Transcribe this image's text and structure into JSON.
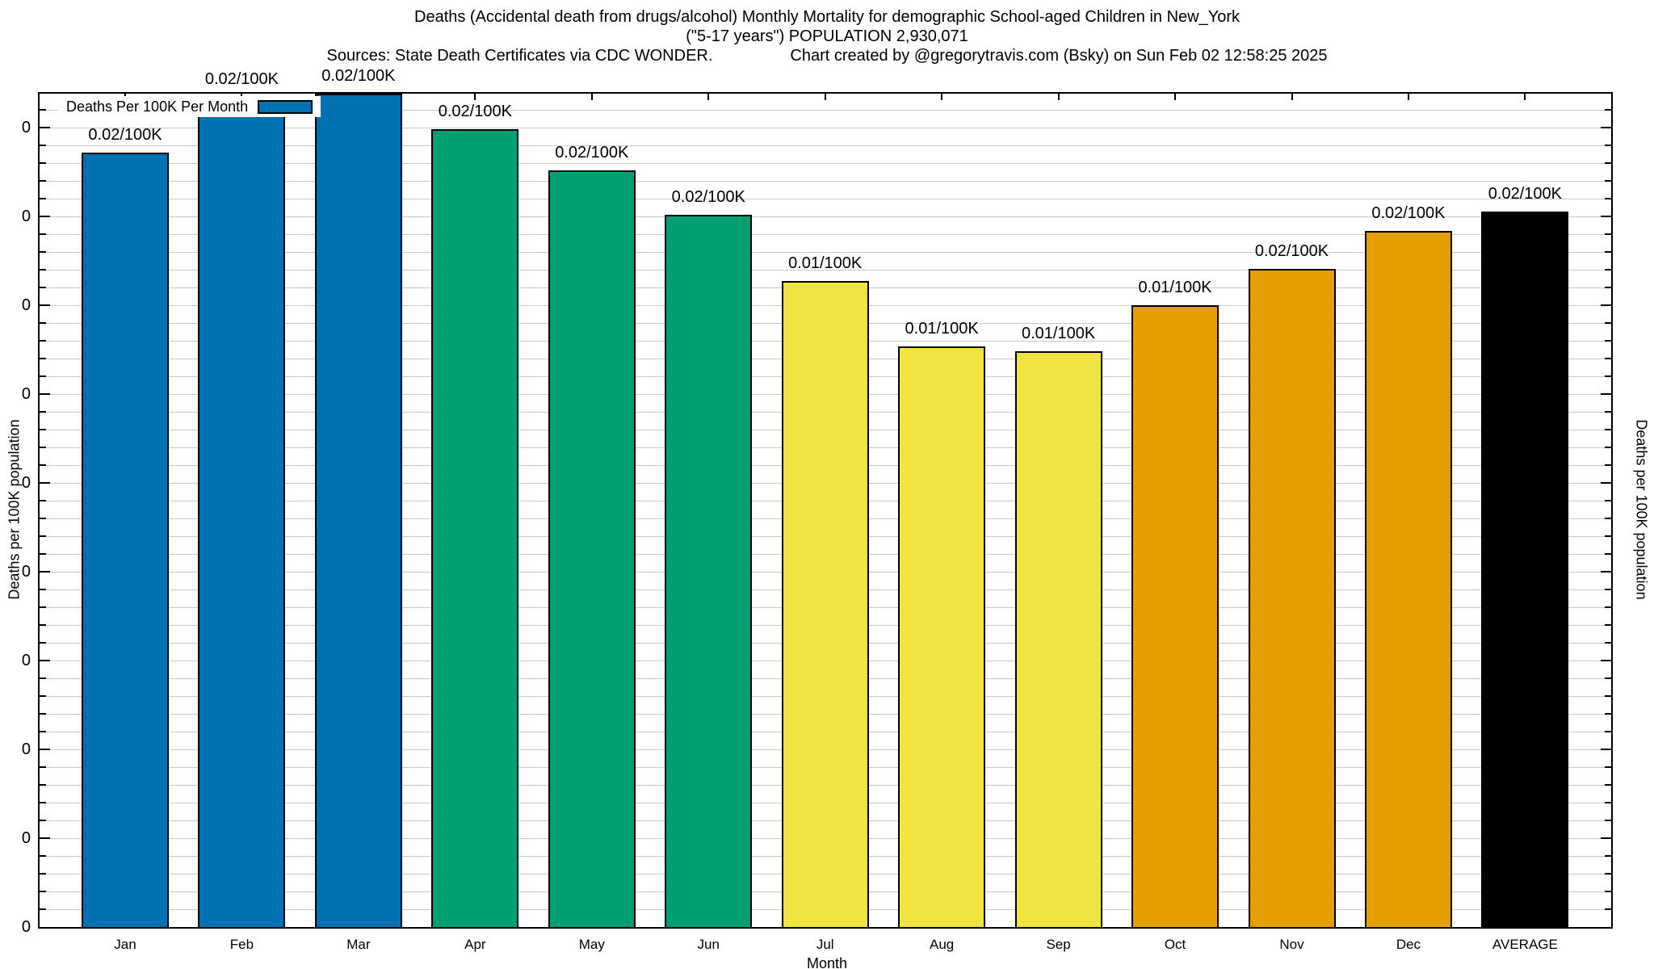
{
  "title": {
    "line1": "Deaths (Accidental death from drugs/alcohol) Monthly Mortality for demographic School-aged Children in New_York",
    "line2": "(\"5-17 years\") POPULATION 2,930,071",
    "sources": "Sources: State Death Certificates via CDC WONDER.",
    "credit": "Chart created by @gregorytravis.com (Bsky) on Sun Feb 02 12:58:25 2025"
  },
  "legend": {
    "label": "Deaths Per 100K Per Month",
    "swatch_color": "#0072B2"
  },
  "axes": {
    "x_title": "Month",
    "y_left_title": "Deaths per 100K population",
    "y_right_title": "Deaths per 100K population",
    "y_tick_label": "0",
    "y_major_tick_count": 10,
    "y_minor_divisions_per_major": 5
  },
  "chart_data": {
    "type": "bar",
    "title": "Deaths (Accidental death from drugs/alcohol) Monthly Mortality for demographic School-aged Children in New_York (\"5-17 years\") POPULATION 2,930,071",
    "xlabel": "Month",
    "ylabel": "Deaths per 100K population",
    "legend_position": "top-left inside plot",
    "grid": true,
    "y_tick_labels": [
      "0",
      "0",
      "0",
      "0",
      "0",
      "0",
      "0",
      "0",
      "0",
      "0"
    ],
    "categories": [
      "Jan",
      "Feb",
      "Mar",
      "Apr",
      "May",
      "Jun",
      "Jul",
      "Aug",
      "Sep",
      "Oct",
      "Nov",
      "Dec",
      "AVERAGE"
    ],
    "values": [
      0.02,
      0.02,
      0.02,
      0.02,
      0.02,
      0.02,
      0.01,
      0.01,
      0.01,
      0.01,
      0.02,
      0.02,
      0.02
    ],
    "bars": [
      {
        "category": "Jan",
        "value_label": "0.02/100K",
        "color": "#0072B2",
        "height_frac": 0.929
      },
      {
        "category": "Feb",
        "value_label": "0.02/100K",
        "color": "#0072B2",
        "height_frac": 0.996
      },
      {
        "category": "Mar",
        "value_label": "0.02/100K",
        "color": "#0072B2",
        "height_frac": 1.0
      },
      {
        "category": "Apr",
        "value_label": "0.02/100K",
        "color": "#009E73",
        "height_frac": 0.957
      },
      {
        "category": "May",
        "value_label": "0.02/100K",
        "color": "#009E73",
        "height_frac": 0.908
      },
      {
        "category": "Jun",
        "value_label": "0.02/100K",
        "color": "#009E73",
        "height_frac": 0.855
      },
      {
        "category": "Jul",
        "value_label": "0.01/100K",
        "color": "#F0E442",
        "height_frac": 0.775
      },
      {
        "category": "Aug",
        "value_label": "0.01/100K",
        "color": "#F0E442",
        "height_frac": 0.697
      },
      {
        "category": "Sep",
        "value_label": "0.01/100K",
        "color": "#F0E442",
        "height_frac": 0.691
      },
      {
        "category": "Oct",
        "value_label": "0.01/100K",
        "color": "#E69F00",
        "height_frac": 0.746
      },
      {
        "category": "Nov",
        "value_label": "0.02/100K",
        "color": "#E69F00",
        "height_frac": 0.79
      },
      {
        "category": "Dec",
        "value_label": "0.02/100K",
        "color": "#E69F00",
        "height_frac": 0.835
      },
      {
        "category": "AVERAGE",
        "value_label": "0.02/100K",
        "color": "#000000",
        "height_frac": 0.859
      }
    ]
  }
}
